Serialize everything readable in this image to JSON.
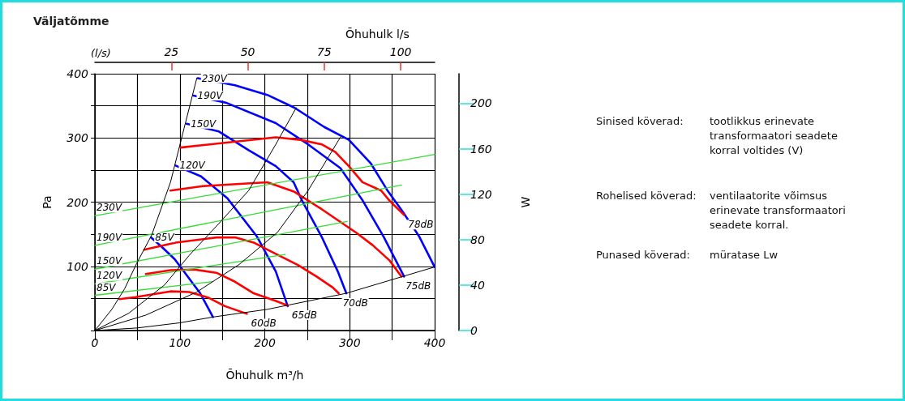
{
  "chart_data": {
    "type": "line",
    "title": "Väljatõmme",
    "xlabel": "Õhuhulk m³/h",
    "x2label": "Õhuhulk l/s",
    "ylabel": "Pa",
    "y2label": "W",
    "xlim": [
      0,
      400
    ],
    "xticks": [
      0,
      {
        "value": 50,
        "label": null
      },
      100,
      {
        "value": 150,
        "label": null
      },
      200,
      {
        "value": 250,
        "label": null
      },
      300,
      {
        "value": 350,
        "label": null
      },
      400
    ],
    "x2lim": [
      0,
      111.1
    ],
    "x2ticks": [
      25,
      50,
      75,
      100
    ],
    "ylim": [
      0,
      400
    ],
    "yticks": [
      {
        "value": 0,
        "label": null
      },
      {
        "value": 50,
        "label": null
      },
      100,
      {
        "value": 150,
        "label": null
      },
      200,
      {
        "value": 250,
        "label": null
      },
      300,
      {
        "value": 350,
        "label": null
      },
      400
    ],
    "y2lim": [
      0,
      226
    ],
    "y2ticks": [
      0,
      40,
      80,
      120,
      160,
      200
    ],
    "grid": true,
    "series": [
      {
        "name": "230V",
        "color": "#0000ff",
        "x": [
          121,
          165,
          203,
          235,
          270,
          299,
          325,
          344,
          363,
          382,
          400
        ],
        "values": [
          393,
          382,
          367,
          347,
          317,
          297,
          260,
          219,
          184,
          146,
          99
        ]
      },
      {
        "name": "190V",
        "color": "#0000ff",
        "x": [
          116,
          154,
          213,
          251,
          289,
          315,
          340,
          364
        ],
        "values": [
          366,
          355,
          323,
          290,
          253,
          203,
          146,
          84
        ]
      },
      {
        "name": "150V",
        "color": "#0000ff",
        "x": [
          108,
          146,
          181,
          213,
          234,
          244,
          267,
          286,
          296
        ],
        "values": [
          322,
          310,
          281,
          256,
          231,
          202,
          146,
          92,
          58
        ]
      },
      {
        "name": "120V",
        "color": "#0000ff",
        "x": [
          95,
          125,
          156,
          191,
          213,
          227
        ],
        "values": [
          257,
          240,
          206,
          146,
          92,
          38
        ]
      },
      {
        "name": "85V",
        "color": "#0000ff",
        "x": [
          66,
          79,
          94,
          124,
          139
        ],
        "values": [
          145,
          130,
          111,
          58,
          21
        ]
      },
      {
        "name": "60dB",
        "color": "#ff0000",
        "x": [
          179,
          153,
          134,
          111,
          89,
          48,
          29
        ],
        "values": [
          26,
          38,
          51,
          60,
          61,
          52,
          49
        ]
      },
      {
        "name": "65dB",
        "color": "#ff0000",
        "x": [
          227,
          213,
          187,
          165,
          143,
          117,
          89,
          60
        ],
        "values": [
          39,
          46,
          58,
          76,
          90,
          95,
          94,
          88
        ]
      },
      {
        "name": "70dB",
        "color": "#ff0000",
        "x": [
          287,
          280,
          261,
          239,
          203,
          187,
          165,
          143,
          95,
          58
        ],
        "values": [
          58,
          67,
          84,
          102,
          126,
          137,
          145,
          145,
          137,
          126
        ]
      },
      {
        "name": "75dB",
        "color": "#ff0000",
        "x": [
          361,
          347,
          327,
          308,
          267,
          235,
          203,
          127,
          89
        ],
        "values": [
          84,
          109,
          133,
          152,
          189,
          216,
          231,
          225,
          218
        ]
      },
      {
        "name": "78dB",
        "color": "#ff0000",
        "x": [
          364,
          347,
          337,
          315,
          299,
          283,
          267,
          242,
          213,
          101
        ],
        "values": [
          180,
          202,
          218,
          231,
          256,
          278,
          290,
          297,
          301,
          285
        ]
      },
      {
        "name": "230V",
        "color": "#33dd33",
        "axis": "y2",
        "x": [
          0,
          400
        ],
        "values": [
          101,
          155
        ]
      },
      {
        "name": "190V",
        "color": "#33dd33",
        "axis": "y2",
        "x": [
          0,
          361
        ],
        "values": [
          75,
          128
        ]
      },
      {
        "name": "150V",
        "color": "#33dd33",
        "axis": "y2",
        "x": [
          0,
          297
        ],
        "values": [
          54,
          96
        ]
      },
      {
        "name": "120V",
        "color": "#33dd33",
        "axis": "y2",
        "x": [
          0,
          224
        ],
        "values": [
          41,
          67
        ]
      },
      {
        "name": "85V",
        "color": "#33dd33",
        "axis": "y2",
        "x": [
          0,
          138
        ],
        "values": [
          31,
          43
        ]
      },
      {
        "color": "#000000",
        "x": [
          0,
          20,
          35,
          49,
          67,
          89,
          105,
          120
        ],
        "values": [
          0,
          33,
          65,
          104,
          149,
          231,
          315,
          393
        ]
      },
      {
        "color": "#000000",
        "x": [
          0,
          40,
          82,
          111,
          149,
          181,
          213,
          237
        ],
        "values": [
          0,
          27,
          71,
          117,
          171,
          218,
          290,
          347
        ]
      },
      {
        "color": "#000000",
        "x": [
          0,
          60,
          120,
          170,
          215,
          251,
          289
        ],
        "values": [
          0,
          24,
          60,
          103,
          153,
          218,
          301
        ]
      },
      {
        "color": "#000000",
        "x": [
          0,
          50,
          100,
          139,
          203,
          296,
          400
        ],
        "values": [
          0,
          4,
          12,
          21,
          33,
          58,
          99
        ]
      }
    ],
    "annotations": [
      "(l/s)",
      "Sinised köverad:",
      "tootlikkus erinevate\ntransformaatori seadete\nkorral voltides (V)",
      "Rohelised köverad:",
      "ventilaatorite võimsus\nerinevate transformaatori\nseadete korral.",
      "Punased köverad:",
      "müratase Lw"
    ]
  }
}
